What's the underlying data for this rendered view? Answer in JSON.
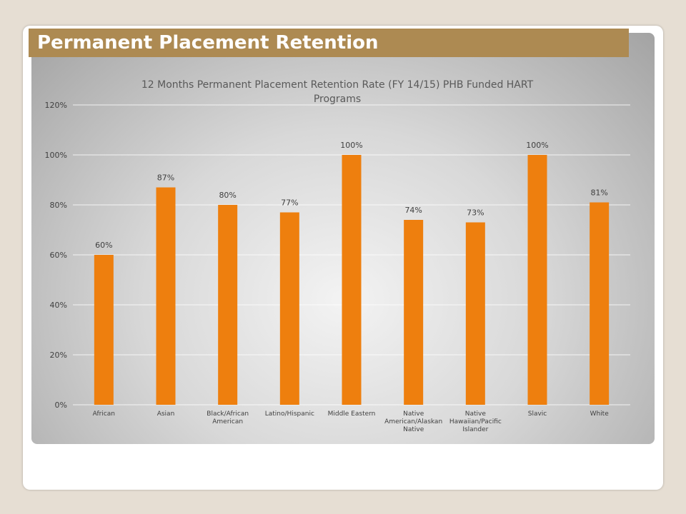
{
  "slide": {
    "title": "Permanent Placement Retention"
  },
  "chart_data": {
    "type": "bar",
    "title_lines": [
      "12 Months Permanent Placement Retention Rate (FY 14/15) PHB Funded HART",
      "Programs"
    ],
    "categories": [
      [
        "African"
      ],
      [
        "Asian"
      ],
      [
        "Black/African",
        "American"
      ],
      [
        "Latino/Hispanic"
      ],
      [
        "Middle Eastern"
      ],
      [
        "Native",
        "American/Alaskan",
        "Native"
      ],
      [
        "Native",
        "Hawaiian/Pacific",
        "Islander"
      ],
      [
        "Slavic"
      ],
      [
        "White"
      ]
    ],
    "values": [
      60,
      87,
      80,
      77,
      100,
      74,
      73,
      100,
      81
    ],
    "data_labels": [
      "60%",
      "87%",
      "80%",
      "77%",
      "100%",
      "74%",
      "73%",
      "100%",
      "81%"
    ],
    "y_ticks": [
      "0%",
      "20%",
      "40%",
      "60%",
      "80%",
      "100%",
      "120%"
    ],
    "ylim": [
      0,
      120
    ],
    "grid": true,
    "legend": "none",
    "bar_color": "#ee7f0e"
  }
}
